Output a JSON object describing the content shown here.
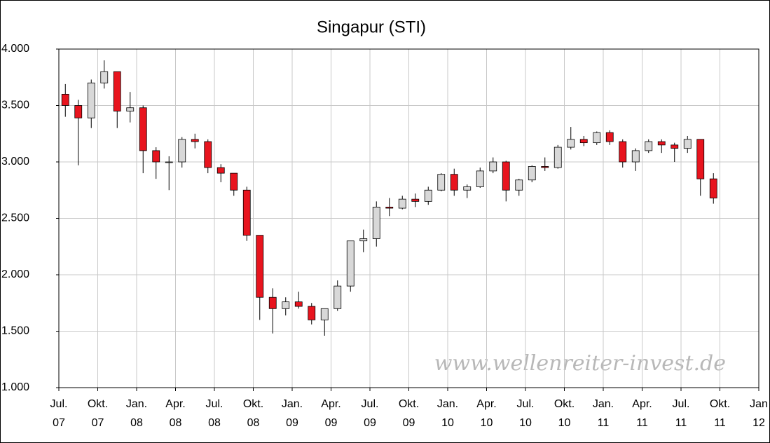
{
  "chart_data": {
    "type": "candlestick",
    "title": "Singapur (STI)",
    "watermark": "www.wellenreiter-invest.de",
    "x": [
      "2007-07",
      "2007-08",
      "2007-09",
      "2007-10",
      "2007-11",
      "2007-12",
      "2008-01",
      "2008-02",
      "2008-03",
      "2008-04",
      "2008-05",
      "2008-06",
      "2008-07",
      "2008-08",
      "2008-09",
      "2008-10",
      "2008-11",
      "2008-12",
      "2009-01",
      "2009-02",
      "2009-03",
      "2009-04",
      "2009-05",
      "2009-06",
      "2009-07",
      "2009-08",
      "2009-09",
      "2009-10",
      "2009-11",
      "2009-12",
      "2010-01",
      "2010-02",
      "2010-03",
      "2010-04",
      "2010-05",
      "2010-06",
      "2010-07",
      "2010-08",
      "2010-09",
      "2010-10",
      "2010-11",
      "2010-12",
      "2011-01",
      "2011-02",
      "2011-03",
      "2011-04",
      "2011-05",
      "2011-06",
      "2011-07",
      "2011-08",
      "2011-09"
    ],
    "open": [
      3600,
      3500,
      3390,
      3700,
      3800,
      3450,
      3480,
      3100,
      3000,
      3000,
      3200,
      3180,
      2950,
      2900,
      2750,
      2350,
      1800,
      1700,
      1760,
      1720,
      1600,
      1700,
      1900,
      2300,
      2320,
      2600,
      2590,
      2670,
      2650,
      2750,
      2890,
      2750,
      2780,
      2920,
      3000,
      2750,
      2840,
      2960,
      2950,
      3130,
      3200,
      3170,
      3260,
      3180,
      3000,
      3100,
      3180,
      3150,
      3120,
      3200,
      2850
    ],
    "high": [
      3690,
      3550,
      3730,
      3900,
      3800,
      3620,
      3500,
      3130,
      3050,
      3220,
      3250,
      3200,
      2980,
      2900,
      2780,
      2350,
      1880,
      1800,
      1850,
      1750,
      1700,
      1950,
      2300,
      2400,
      2650,
      2680,
      2700,
      2720,
      2780,
      2900,
      2940,
      2800,
      2950,
      3040,
      3010,
      2850,
      2970,
      3040,
      3150,
      3310,
      3230,
      3270,
      3280,
      3200,
      3120,
      3200,
      3200,
      3170,
      3230,
      3200,
      2900
    ],
    "low": [
      3400,
      2970,
      3300,
      3650,
      3300,
      3350,
      2900,
      2850,
      2750,
      2950,
      3120,
      2900,
      2820,
      2700,
      2300,
      1600,
      1480,
      1640,
      1700,
      1560,
      1460,
      1680,
      1850,
      2200,
      2250,
      2520,
      2580,
      2600,
      2620,
      2740,
      2700,
      2680,
      2770,
      2900,
      2650,
      2700,
      2820,
      2920,
      2940,
      3110,
      3140,
      3150,
      3150,
      2950,
      2920,
      3080,
      3080,
      3000,
      3080,
      2700,
      2630
    ],
    "close": [
      3500,
      3390,
      3700,
      3800,
      3450,
      3480,
      3100,
      3000,
      3000,
      3200,
      3180,
      2950,
      2900,
      2750,
      2350,
      1800,
      1700,
      1760,
      1720,
      1600,
      1700,
      1900,
      2300,
      2320,
      2600,
      2590,
      2670,
      2650,
      2750,
      2890,
      2750,
      2780,
      2920,
      3000,
      2750,
      2840,
      2960,
      2950,
      3130,
      3200,
      3170,
      3260,
      3180,
      3000,
      3100,
      3180,
      3150,
      3120,
      3200,
      2850,
      2680
    ],
    "up_color": "#d8d8d8",
    "down_color": "#e8141e",
    "grid": true,
    "xlim": [
      "2007-07",
      "2012-01"
    ],
    "xticks": [
      {
        "value": "2007-07",
        "label": [
          "Jul.",
          "07"
        ]
      },
      {
        "value": "2007-10",
        "label": [
          "Okt.",
          "07"
        ]
      },
      {
        "value": "2008-01",
        "label": [
          "Jan.",
          "08"
        ]
      },
      {
        "value": "2008-04",
        "label": [
          "Apr.",
          "08"
        ]
      },
      {
        "value": "2008-07",
        "label": [
          "Jul.",
          "08"
        ]
      },
      {
        "value": "2008-10",
        "label": [
          "Okt.",
          "08"
        ]
      },
      {
        "value": "2009-01",
        "label": [
          "Jan.",
          "09"
        ]
      },
      {
        "value": "2009-04",
        "label": [
          "Apr.",
          "09"
        ]
      },
      {
        "value": "2009-07",
        "label": [
          "Jul.",
          "09"
        ]
      },
      {
        "value": "2009-10",
        "label": [
          "Okt.",
          "09"
        ]
      },
      {
        "value": "2010-01",
        "label": [
          "Jan.",
          "10"
        ]
      },
      {
        "value": "2010-04",
        "label": [
          "Apr.",
          "10"
        ]
      },
      {
        "value": "2010-07",
        "label": [
          "Jul.",
          "10"
        ]
      },
      {
        "value": "2010-10",
        "label": [
          "Okt.",
          "10"
        ]
      },
      {
        "value": "2011-01",
        "label": [
          "Jan.",
          "11"
        ]
      },
      {
        "value": "2011-04",
        "label": [
          "Apr.",
          "11"
        ]
      },
      {
        "value": "2011-07",
        "label": [
          "Jul.",
          "11"
        ]
      },
      {
        "value": "2011-10",
        "label": [
          "Okt.",
          "11"
        ]
      },
      {
        "value": "2012-01",
        "label": [
          "Jan",
          "12"
        ]
      }
    ],
    "ylim": [
      1000,
      4000
    ],
    "yticks": [
      {
        "value": 1000,
        "label": "1.000"
      },
      {
        "value": 1500,
        "label": "1.500"
      },
      {
        "value": 2000,
        "label": "2.000"
      },
      {
        "value": 2500,
        "label": "2.500"
      },
      {
        "value": 3000,
        "label": "3.000"
      },
      {
        "value": 3500,
        "label": "3.500"
      },
      {
        "value": 4000,
        "label": "4.000"
      }
    ]
  }
}
